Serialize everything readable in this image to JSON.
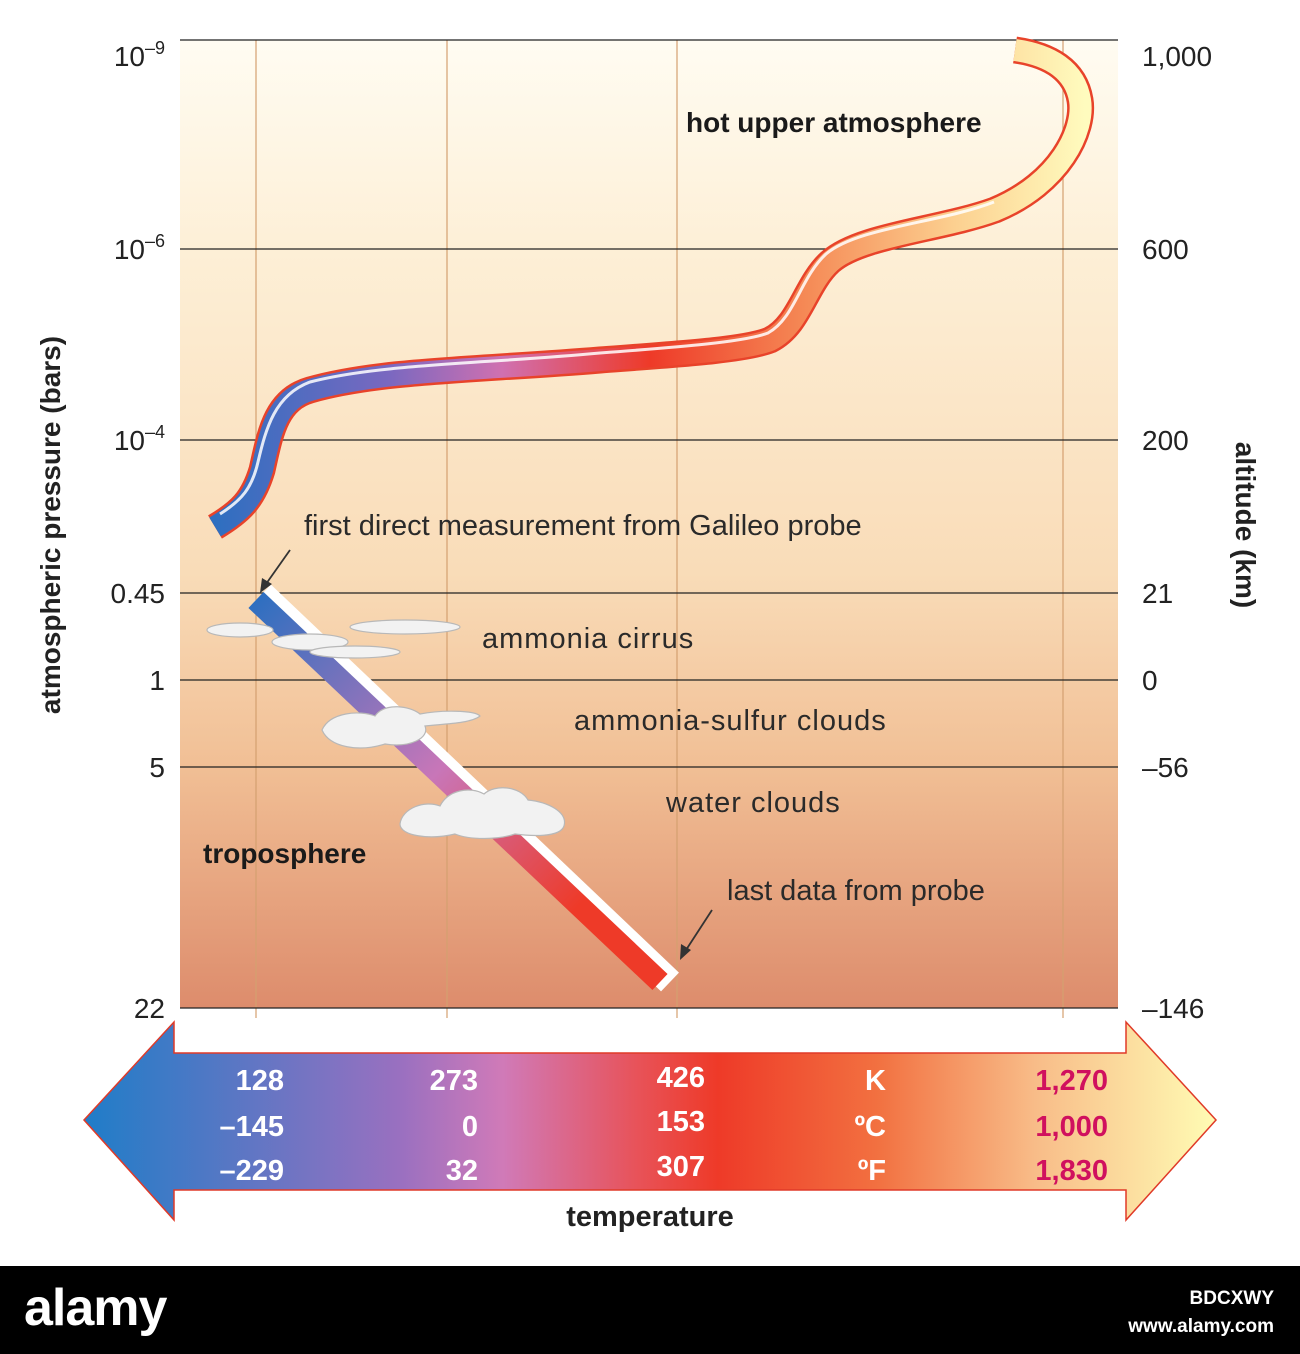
{
  "chart_data": {
    "type": "line",
    "ylabel": "atmospheric pressure (bars)",
    "ylabel_right": "altitude (km)",
    "xlabel": "temperature",
    "y_scale": "log",
    "y_ticks": [
      "10–9",
      "10–6",
      "10–4",
      "0.45",
      "1",
      "5",
      "22"
    ],
    "y_ticks_right": [
      "1,000",
      "600",
      "200",
      "21",
      "0",
      "–56",
      "–146"
    ],
    "temperature_scale": {
      "units": [
        "K",
        "ºC",
        "ºF"
      ],
      "columns": [
        {
          "K": "128",
          "C": "–145",
          "F": "–229"
        },
        {
          "K": "273",
          "C": "0",
          "F": "32"
        },
        {
          "K": "426",
          "C": "153",
          "F": "307"
        },
        {
          "K": "1,270",
          "C": "1,000",
          "F": "1,830"
        }
      ]
    },
    "series": [
      {
        "values_K_bar": [
          [
            110,
            0.00025
          ],
          [
            125,
            0.0001
          ],
          [
            150,
            3e-05
          ],
          [
            250,
            1.5e-05
          ],
          [
            426,
            1e-05
          ],
          [
            580,
            7e-06
          ],
          [
            720,
            8e-07
          ],
          [
            1050,
            3e-08
          ],
          [
            1240,
            3e-09
          ],
          [
            1060,
            1e-09
          ]
        ]
      },
      {
        "values_K_bar": [
          [
            128,
            0.45
          ],
          [
            273,
            3
          ],
          [
            426,
            22
          ]
        ]
      }
    ],
    "annotations": {
      "upper": "hot upper atmosphere",
      "troposphere": "troposphere",
      "first": "first direct measurement from Galileo probe",
      "last": "last data from probe",
      "cirrus": "ammonia cirrus",
      "sulfur": "ammonia-sulfur clouds",
      "water": "water clouds"
    },
    "grid": true
  },
  "colors": {
    "cold": "#1f6fc0",
    "mid": "#c878c0",
    "warm": "#ee3a2a",
    "hot": "#f58a50",
    "hottest": "#fff6b0",
    "red_text": "#d0105e"
  },
  "footer": {
    "logo": "alamy",
    "image_id": "BDCXWY",
    "url": "www.alamy.com"
  }
}
